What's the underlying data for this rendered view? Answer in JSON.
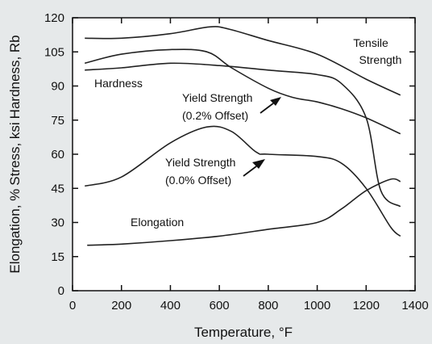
{
  "chart_data": {
    "type": "line",
    "xlabel": "Temperature, °F",
    "ylabel_lines": [
      "Elongation, %",
      "Stress, ksi",
      "Hardness, Rb"
    ],
    "xlim": [
      0,
      1400
    ],
    "ylim": [
      0,
      120
    ],
    "xticks": [
      0,
      200,
      400,
      600,
      800,
      1000,
      1200,
      1400
    ],
    "yticks": [
      0,
      15,
      30,
      45,
      60,
      75,
      90,
      105,
      120
    ],
    "grid": false,
    "legend": "none",
    "series": [
      {
        "name": "Tensile Strength",
        "color": "#222222",
        "x": [
          50,
          200,
          400,
          560,
          640,
          800,
          1000,
          1200,
          1340
        ],
        "y": [
          111,
          111,
          113,
          116,
          115,
          110,
          104,
          93,
          86
        ]
      },
      {
        "name": "Hardness",
        "color": "#222222",
        "x": [
          50,
          200,
          400,
          600,
          800,
          1000,
          1100,
          1200,
          1260,
          1340
        ],
        "y": [
          97,
          98,
          100,
          99,
          97,
          95,
          91,
          76,
          44,
          37
        ]
      },
      {
        "name": "Yield Strength (0.2% Offset)",
        "color": "#222222",
        "x": [
          50,
          200,
          400,
          550,
          650,
          800,
          900,
          1000,
          1100,
          1200,
          1340
        ],
        "y": [
          100,
          104,
          106,
          105,
          98,
          89,
          85,
          83,
          80,
          76,
          69
        ]
      },
      {
        "name": "Yield Strength (0.0% Offset)",
        "color": "#222222",
        "x": [
          50,
          200,
          400,
          550,
          650,
          750,
          800,
          1000,
          1100,
          1200,
          1300,
          1340
        ],
        "y": [
          46,
          50,
          65,
          72,
          70,
          61,
          60,
          59,
          56,
          45,
          28,
          24
        ]
      },
      {
        "name": "Elongation",
        "color": "#222222",
        "x": [
          60,
          200,
          400,
          600,
          800,
          1000,
          1100,
          1200,
          1300,
          1340
        ],
        "y": [
          20,
          20.5,
          22,
          24,
          27,
          30,
          36,
          44,
          49,
          48
        ]
      }
    ],
    "annotations": [
      {
        "id": "tensile",
        "lines": [
          "Tensile",
          "Strength"
        ]
      },
      {
        "id": "hardness",
        "lines": [
          "Hardness"
        ]
      },
      {
        "id": "ys02",
        "lines": [
          "Yield Strength",
          "(0.2% Offset)"
        ]
      },
      {
        "id": "ys00",
        "lines": [
          "Yield Strength",
          "(0.0% Offset)"
        ]
      },
      {
        "id": "elong",
        "lines": [
          "Elongation"
        ]
      }
    ]
  }
}
